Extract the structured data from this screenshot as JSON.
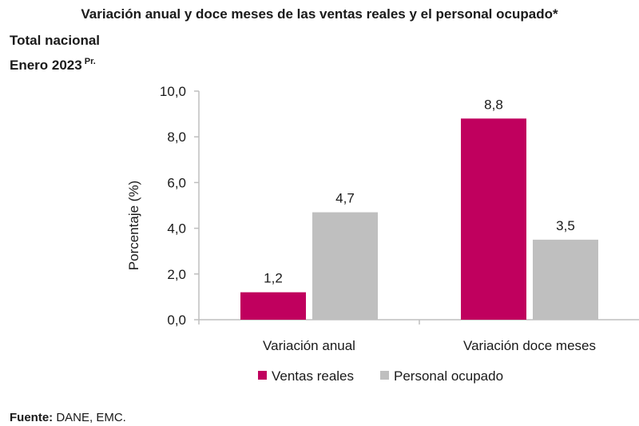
{
  "header": {
    "title": "Variación anual y doce meses de las ventas reales y el personal ocupado*",
    "subtitle_line1": "Total nacional",
    "subtitle_line2": "Enero 2023",
    "subtitle_sup": "Pr."
  },
  "footer": {
    "source_label": "Fuente:",
    "source_text": " DANE, EMC."
  },
  "colors": {
    "ventas": "#c0005e",
    "personal": "#bfbfbf",
    "axis": "#bfbfbf"
  },
  "chart_data": {
    "type": "bar",
    "title": "Variación anual y doce meses de las ventas reales y el personal ocupado*",
    "ylabel": "Porcentaje (%)",
    "xlabel": "",
    "ylim": [
      0,
      10
    ],
    "yticks": [
      0,
      2,
      4,
      6,
      8,
      10
    ],
    "ytick_labels": [
      "0,0",
      "2,0",
      "4,0",
      "6,0",
      "8,0",
      "10,0"
    ],
    "categories": [
      "Variación anual",
      "Variación doce meses"
    ],
    "series": [
      {
        "name": "Ventas reales",
        "values": [
          1.2,
          8.8
        ],
        "labels": [
          "1,2",
          "8,8"
        ]
      },
      {
        "name": "Personal ocupado",
        "values": [
          4.7,
          3.5
        ],
        "labels": [
          "4,7",
          "3,5"
        ]
      }
    ],
    "legend": "bottom-center",
    "grid": false
  }
}
